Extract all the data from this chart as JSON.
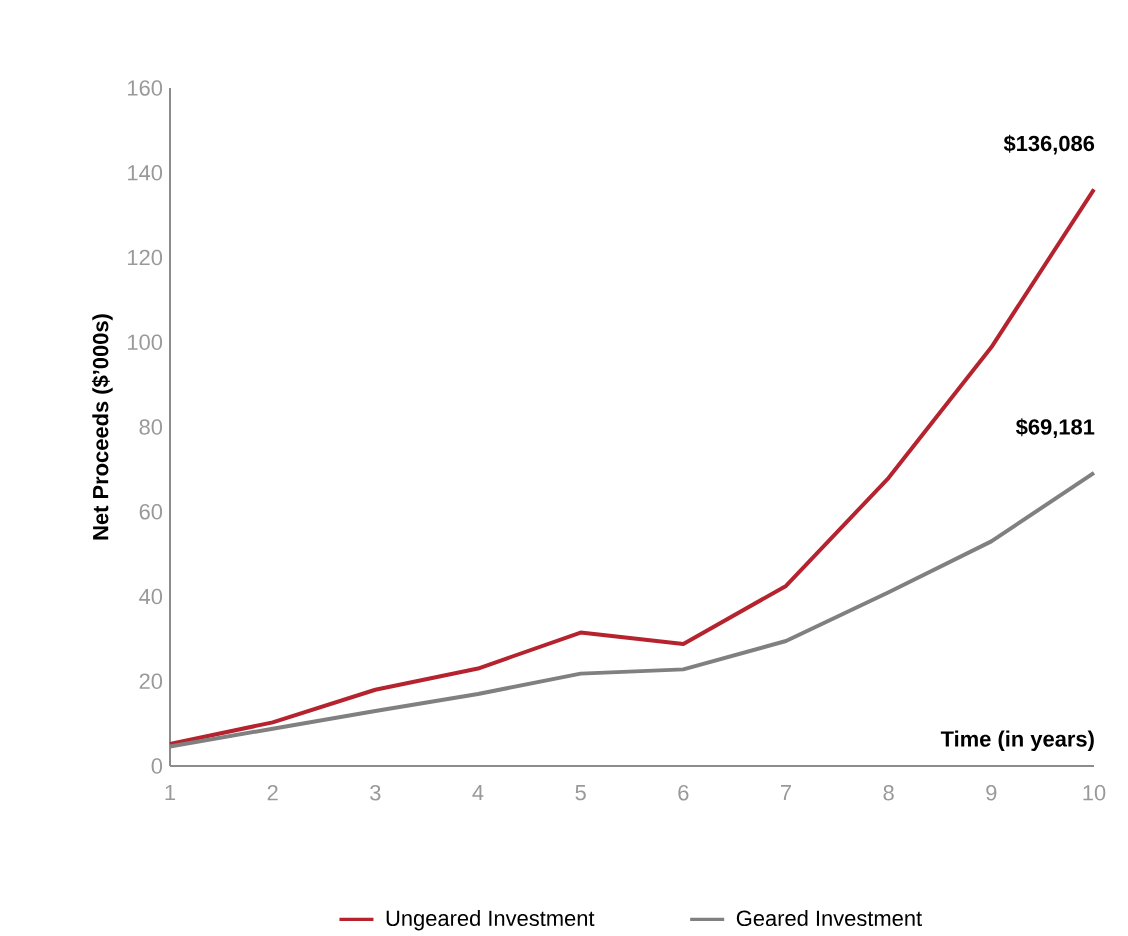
{
  "chart_data": {
    "type": "line",
    "ylabel": "Net Proceeds ($’000s)",
    "xlabel": "Time (in years)",
    "x": [
      1,
      2,
      3,
      4,
      5,
      6,
      7,
      8,
      9,
      10
    ],
    "series": [
      {
        "name": "Ungeared Investment",
        "color": "#b5232f",
        "values": [
          5.2,
          10.3,
          18,
          23,
          31.5,
          28.8,
          42.5,
          68,
          98.8,
          136.086
        ]
      },
      {
        "name": "Geared Investment",
        "color": "#808080",
        "values": [
          4.6,
          8.8,
          13,
          17,
          21.8,
          22.8,
          29.5,
          41,
          53,
          69.181
        ]
      }
    ],
    "xlim": [
      1,
      10
    ],
    "xticks": [
      1,
      2,
      3,
      4,
      5,
      6,
      7,
      8,
      9,
      10
    ],
    "ylim": [
      0,
      160
    ],
    "yticks": [
      0,
      20,
      40,
      60,
      80,
      100,
      120,
      140,
      160
    ],
    "annotations": [
      {
        "text": "$136,086",
        "x": 10,
        "y": 136.086
      },
      {
        "text": "$69,181",
        "x": 10,
        "y": 69.181
      }
    ],
    "grid": false,
    "legend": "bottom",
    "marker": "none",
    "line_style": "solid"
  }
}
